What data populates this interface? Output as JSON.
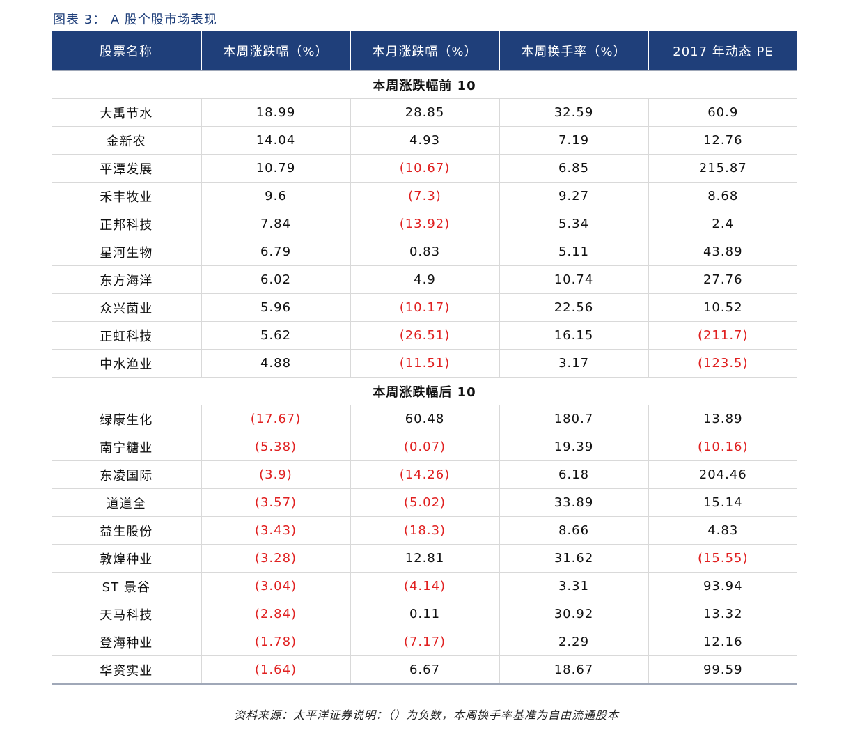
{
  "caption": "图表 3： A 股个股市场表现",
  "columns": [
    "股票名称",
    "本周涨跌幅（%）",
    "本月涨跌幅（%）",
    "本周换手率（%）",
    "2017 年动态 PE"
  ],
  "sections": [
    {
      "title": "本周涨跌幅前 10",
      "rows": [
        [
          "大禹节水",
          "18.99",
          "28.85",
          "32.59",
          "60.9"
        ],
        [
          "金新农",
          "14.04",
          "4.93",
          "7.19",
          "12.76"
        ],
        [
          "平潭发展",
          "10.79",
          "(10.67)",
          "6.85",
          "215.87"
        ],
        [
          "禾丰牧业",
          "9.6",
          "(7.3)",
          "9.27",
          "8.68"
        ],
        [
          "正邦科技",
          "7.84",
          "(13.92)",
          "5.34",
          "2.4"
        ],
        [
          "星河生物",
          "6.79",
          "0.83",
          "5.11",
          "43.89"
        ],
        [
          "东方海洋",
          "6.02",
          "4.9",
          "10.74",
          "27.76"
        ],
        [
          "众兴菌业",
          "5.96",
          "(10.17)",
          "22.56",
          "10.52"
        ],
        [
          "正虹科技",
          "5.62",
          "(26.51)",
          "16.15",
          "(211.7)"
        ],
        [
          "中水渔业",
          "4.88",
          "(11.51)",
          "3.17",
          "(123.5)"
        ]
      ]
    },
    {
      "title": "本周涨跌幅后 10",
      "rows": [
        [
          "绿康生化",
          "(17.67)",
          "60.48",
          "180.7",
          "13.89"
        ],
        [
          "南宁糖业",
          "(5.38)",
          "(0.07)",
          "19.39",
          "(10.16)"
        ],
        [
          "东凌国际",
          "(3.9)",
          "(14.26)",
          "6.18",
          "204.46"
        ],
        [
          "道道全",
          "(3.57)",
          "(5.02)",
          "33.89",
          "15.14"
        ],
        [
          "益生股份",
          "(3.43)",
          "(18.3)",
          "8.66",
          "4.83"
        ],
        [
          "敦煌种业",
          "(3.28)",
          "12.81",
          "31.62",
          "(15.55)"
        ],
        [
          "ST 景谷",
          "(3.04)",
          "(4.14)",
          "3.31",
          "93.94"
        ],
        [
          "天马科技",
          "(2.84)",
          "0.11",
          "30.92",
          "13.32"
        ],
        [
          "登海种业",
          "(1.78)",
          "(7.17)",
          "2.29",
          "12.16"
        ],
        [
          "华资实业",
          "(1.64)",
          "6.67",
          "18.67",
          "99.59"
        ]
      ]
    }
  ],
  "note": "资料来源：太平洋证券说明：（）为负数，本周换手率基准为自由流通股本",
  "colors": {
    "header_bg": "#1f3f7a",
    "negative": "#e02020",
    "caption": "#1f3f7a"
  }
}
